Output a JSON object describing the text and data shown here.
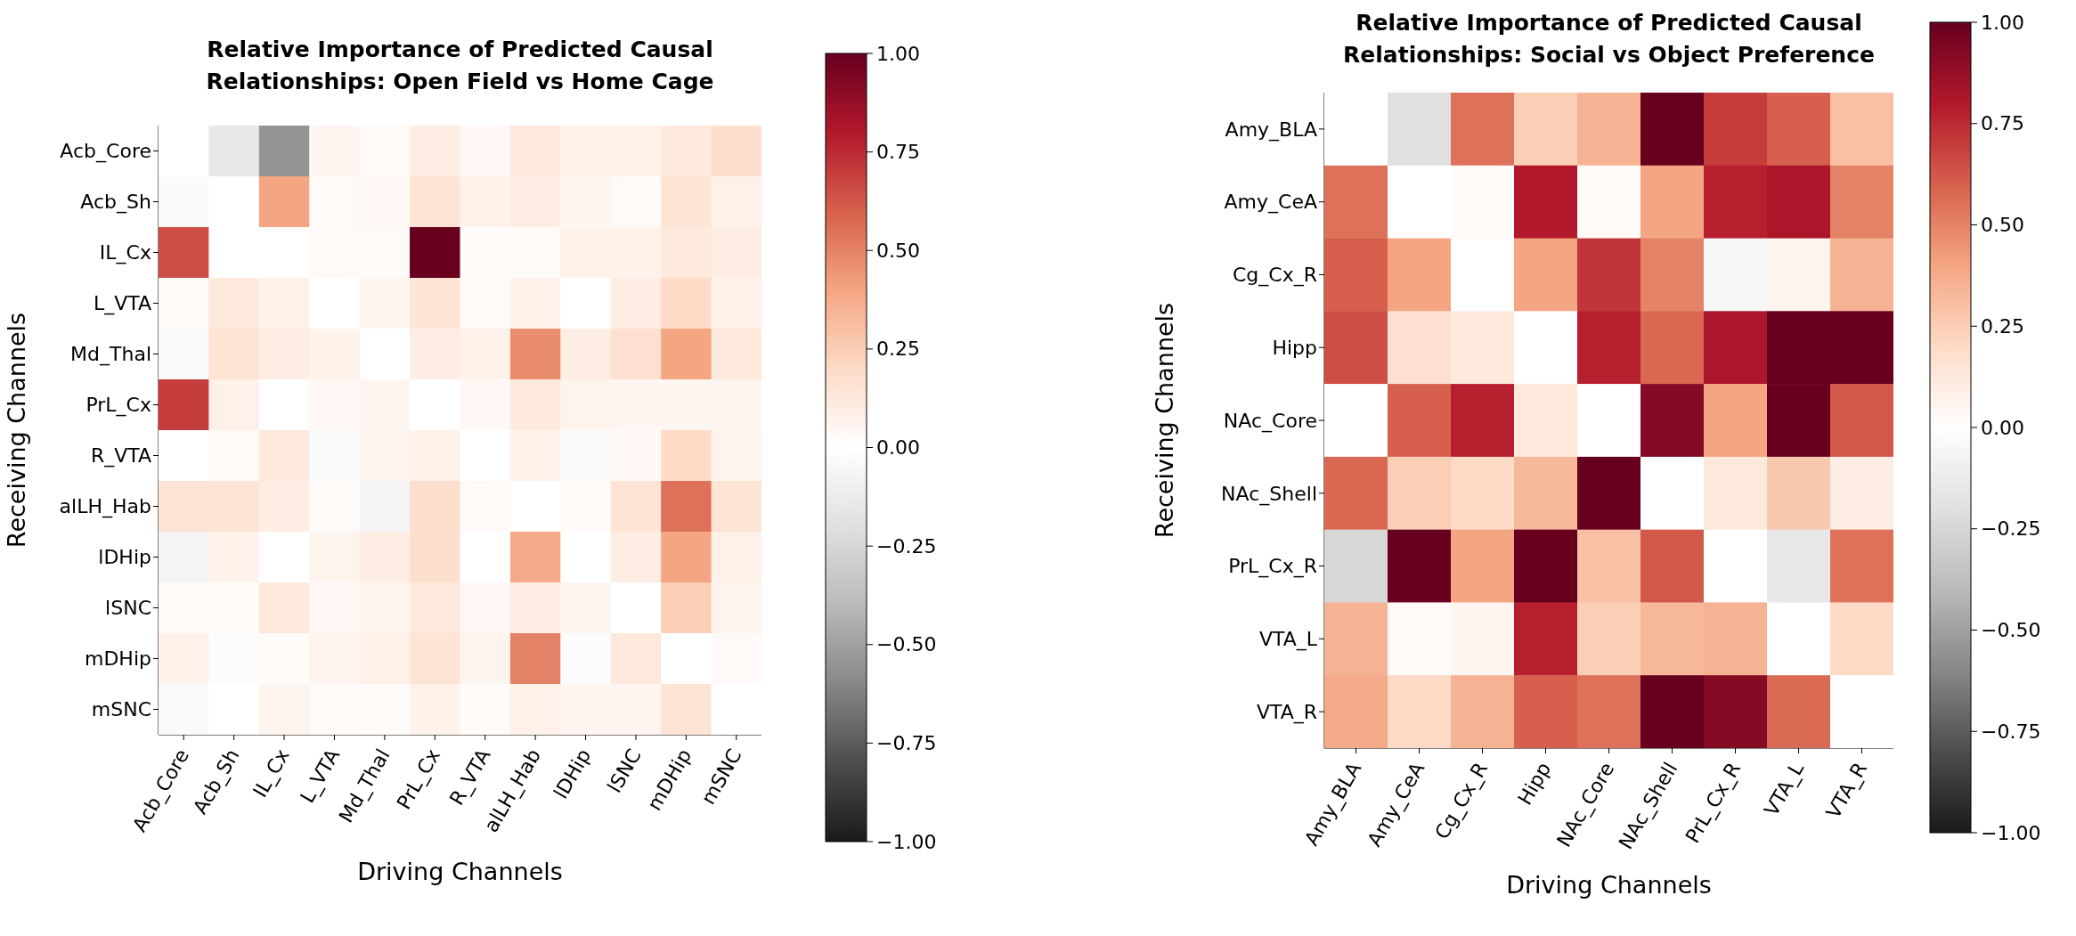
{
  "chart_data": [
    {
      "type": "heatmap",
      "title": "Relative Importance of Predicted Causal\nRelationships: Open Field vs Home Cage",
      "xlabel": "Driving Channels",
      "ylabel": "Receiving Channels",
      "categories": [
        "Acb_Core",
        "Acb_Sh",
        "IL_Cx",
        "L_VTA",
        "Md_Thal",
        "PrL_Cx",
        "R_VTA",
        "alLH_Hab",
        "lDHip",
        "lSNC",
        "mDHip",
        "mSNC"
      ],
      "y_categories": [
        "Acb_Core",
        "Acb_Sh",
        "IL_Cx",
        "L_VTA",
        "Md_Thal",
        "PrL_Cx",
        "R_VTA",
        "alLH_Hab",
        "lDHip",
        "lSNC",
        "mDHip",
        "mSNC"
      ],
      "cells": [
        [
          0,
          -0.15,
          -0.55,
          0.05,
          0.03,
          0.1,
          0.04,
          0.12,
          0.07,
          0.08,
          0.12,
          0.18
        ],
        [
          -0.03,
          0,
          0.4,
          0.03,
          0.04,
          0.15,
          0.07,
          0.1,
          0.05,
          0.03,
          0.15,
          0.08
        ],
        [
          0.65,
          0,
          0,
          0.03,
          0.03,
          1,
          0.02,
          0.02,
          0.07,
          0.07,
          0.12,
          0.1
        ],
        [
          0.03,
          0.12,
          0.08,
          0,
          0.05,
          0.15,
          0.03,
          0.08,
          0,
          0.1,
          0.2,
          0.08
        ],
        [
          -0.04,
          0.15,
          0.1,
          0.07,
          0,
          0.1,
          0.07,
          0.47,
          0.1,
          0.17,
          0.4,
          0.12
        ],
        [
          0.7,
          0.08,
          0,
          0.04,
          0.05,
          0,
          0.04,
          0.12,
          0.06,
          0.05,
          0.05,
          0.05
        ],
        [
          0,
          0.03,
          0.12,
          -0.03,
          0.06,
          0.08,
          0,
          0.07,
          -0.03,
          0.04,
          0.2,
          0.06
        ],
        [
          0.15,
          0.15,
          0.1,
          0.02,
          -0.07,
          0.18,
          0.03,
          0,
          0.03,
          0.15,
          0.55,
          0.15
        ],
        [
          -0.07,
          0.07,
          0,
          0.06,
          0.1,
          0.18,
          0,
          0.38,
          0,
          0.1,
          0.4,
          0.08
        ],
        [
          0.03,
          0.02,
          0.13,
          0.04,
          0.06,
          0.12,
          0.04,
          0.1,
          0.06,
          0,
          0.25,
          0.06
        ],
        [
          0.08,
          -0.02,
          0.02,
          0.06,
          0.08,
          0.15,
          0.06,
          0.5,
          -0.02,
          0.13,
          0,
          0.03
        ],
        [
          -0.03,
          0,
          0.06,
          0.03,
          0.02,
          0.07,
          0.02,
          0.08,
          0.05,
          0.05,
          0.15,
          0
        ]
      ],
      "clim": [
        -1,
        1
      ],
      "cticks": [
        {
          "value": -1,
          "label": "−1.00"
        },
        {
          "value": -0.75,
          "label": "−0.75"
        },
        {
          "value": -0.5,
          "label": "−0.50"
        },
        {
          "value": -0.25,
          "label": "−0.25"
        },
        {
          "value": 0,
          "label": "0.00"
        },
        {
          "value": 0.25,
          "label": "0.25"
        },
        {
          "value": 0.5,
          "label": "0.50"
        },
        {
          "value": 0.75,
          "label": "0.75"
        },
        {
          "value": 1,
          "label": "1.00"
        }
      ]
    },
    {
      "type": "heatmap",
      "title": "Relative Importance of Predicted Causal\nRelationships: Social vs Object Preference",
      "xlabel": "Driving Channels",
      "ylabel": "Receiving Channels",
      "categories": [
        "Amy_BLA",
        "Amy_CeA",
        "Cg_Cx_R",
        "Hipp",
        "NAc_Core",
        "NAc_Shell",
        "PrL_Cx_R",
        "VTA_L",
        "VTA_R"
      ],
      "y_categories": [
        "Amy_BLA",
        "Amy_CeA",
        "Cg_Cx_R",
        "Hipp",
        "NAc_Core",
        "NAc_Shell",
        "PrL_Cx_R",
        "VTA_L",
        "VTA_R"
      ],
      "cells": [
        [
          0,
          -0.2,
          0.55,
          0.25,
          0.35,
          1,
          0.7,
          0.6,
          0.3
        ],
        [
          0.55,
          0,
          0.02,
          0.8,
          0.02,
          0.4,
          0.78,
          0.82,
          0.5
        ],
        [
          0.6,
          0.4,
          0,
          0.4,
          0.72,
          0.5,
          -0.05,
          0.06,
          0.35
        ],
        [
          0.65,
          0.17,
          0.12,
          0,
          0.78,
          0.58,
          0.82,
          1,
          1
        ],
        [
          0,
          0.6,
          0.78,
          0.12,
          0,
          0.92,
          0.4,
          1,
          0.62
        ],
        [
          0.58,
          0.25,
          0.2,
          0.33,
          1,
          0,
          0.12,
          0.27,
          0.1
        ],
        [
          -0.25,
          1,
          0.4,
          1,
          0.3,
          0.62,
          0,
          -0.15,
          0.55
        ],
        [
          0.35,
          0.03,
          0.05,
          0.78,
          0.25,
          0.33,
          0.35,
          0,
          0.2
        ],
        [
          0.38,
          0.2,
          0.35,
          0.6,
          0.55,
          1,
          0.92,
          0.57,
          0
        ]
      ],
      "clim": [
        -1,
        1
      ],
      "cticks": [
        {
          "value": -1,
          "label": "−1.00"
        },
        {
          "value": -0.75,
          "label": "−0.75"
        },
        {
          "value": -0.5,
          "label": "−0.50"
        },
        {
          "value": -0.25,
          "label": "−0.25"
        },
        {
          "value": 0,
          "label": "0.00"
        },
        {
          "value": 0.25,
          "label": "0.25"
        },
        {
          "value": 0.5,
          "label": "0.50"
        },
        {
          "value": 0.75,
          "label": "0.75"
        },
        {
          "value": 1,
          "label": "1.00"
        }
      ]
    }
  ]
}
